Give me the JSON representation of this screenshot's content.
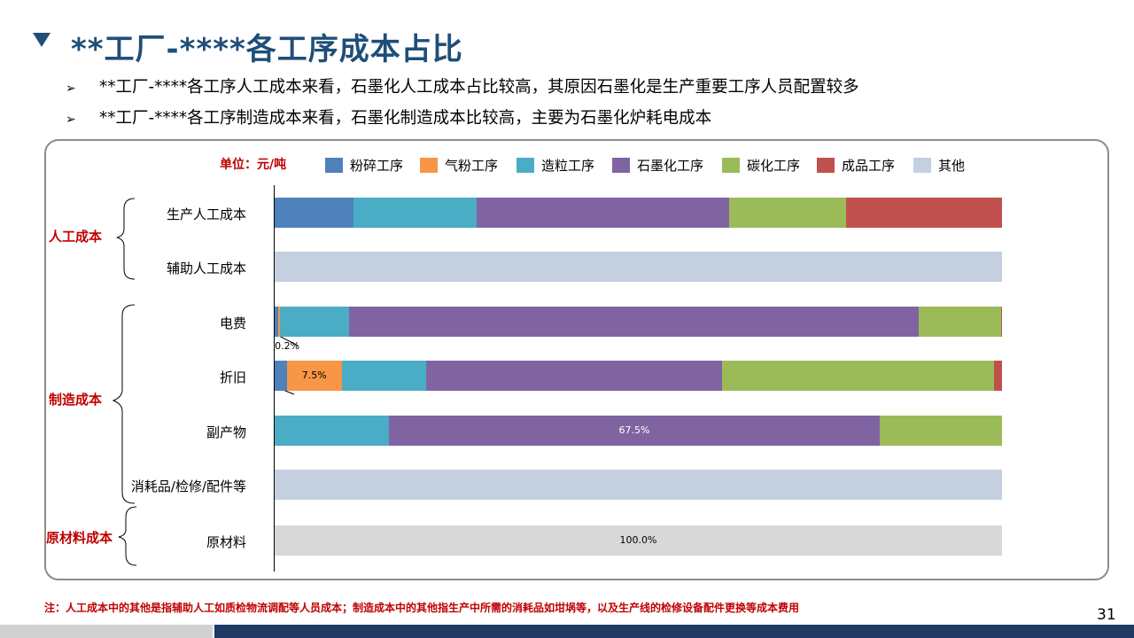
{
  "title": "**工厂-****各工序成本占比",
  "bullets": [
    "**工厂-****各工序人工成本来看，石墨化人工成本占比较高，其原因石墨化是生产重要工序人员配置较多",
    "**工厂-****各工序制造成本来看，石墨化制造成本比较高，主要为石墨化炉耗电成本"
  ],
  "bullet_marker": "➢",
  "chart_data": {
    "type": "bar",
    "orientation": "horizontal",
    "stacked": true,
    "percent_stacked": true,
    "unit_label": "单位：元/吨",
    "xlim": [
      0,
      100
    ],
    "categories": [
      "生产人工成本",
      "辅助人工成本",
      "电费",
      "折旧",
      "副产物",
      "消耗品/检修/配件等",
      "原材料"
    ],
    "groups": [
      {
        "label": "人工成本",
        "categories": [
          "生产人工成本",
          "辅助人工成本"
        ]
      },
      {
        "label": "制造成本",
        "categories": [
          "电费",
          "折旧",
          "副产物",
          "消耗品/检修/配件等"
        ]
      },
      {
        "label": "原材料成本",
        "categories": [
          "原材料"
        ]
      }
    ],
    "series": [
      {
        "name": "粉碎工序",
        "color": "#4f81bd",
        "values": [
          10.8,
          0,
          0.5,
          1.7,
          0,
          0,
          0
        ]
      },
      {
        "name": "气粉工序",
        "color": "#f79646",
        "values": [
          0,
          0,
          0.2,
          7.5,
          0,
          0,
          0
        ]
      },
      {
        "name": "造粒工序",
        "color": "#4bacc6",
        "values": [
          17.0,
          0,
          9.5,
          11.6,
          15.7,
          0,
          0
        ]
      },
      {
        "name": "石墨化工序",
        "color": "#8064a2",
        "values": [
          34.7,
          0,
          78.3,
          40.7,
          67.5,
          0,
          0
        ]
      },
      {
        "name": "碳化工序",
        "color": "#9bbb59",
        "values": [
          16.1,
          0,
          11.4,
          37.4,
          16.8,
          0,
          0
        ]
      },
      {
        "name": "成品工序",
        "color": "#c0504d",
        "values": [
          21.4,
          0,
          0.1,
          1.1,
          0,
          0,
          0
        ]
      },
      {
        "name": "其他",
        "color": "#c4cfe0",
        "values": [
          0,
          100,
          0,
          0,
          0,
          100,
          0
        ]
      },
      {
        "name": "原材料",
        "color": "#d8d8d8",
        "legend": false,
        "values": [
          0,
          0,
          0,
          0,
          0,
          0,
          100
        ]
      }
    ],
    "data_labels": [
      {
        "category": "电费",
        "series": "气粉工序",
        "text": "0.2%",
        "callout": true
      },
      {
        "category": "折旧",
        "series": "气粉工序",
        "text": "7.5%"
      },
      {
        "category": "副产物",
        "series": "石墨化工序",
        "text": "67.5%"
      },
      {
        "category": "原材料",
        "series": "原材料",
        "text": "100.0%"
      }
    ]
  },
  "note": "注：人工成本中的其他是指辅助人工如质检物流调配等人员成本；制造成本中的其他指生产中所需的消耗品如坩埚等，以及生产线的检修设备配件更换等成本费用",
  "page_number": "31"
}
